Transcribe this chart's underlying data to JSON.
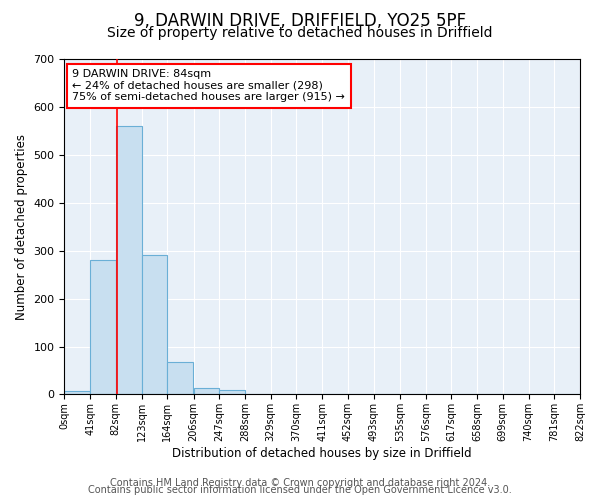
{
  "title1": "9, DARWIN DRIVE, DRIFFIELD, YO25 5PF",
  "title2": "Size of property relative to detached houses in Driffield",
  "xlabel": "Distribution of detached houses by size in Driffield",
  "ylabel": "Number of detached properties",
  "bin_edges": [
    0,
    41,
    82,
    123,
    164,
    206,
    247,
    288,
    329,
    370,
    411,
    452,
    493,
    535,
    576,
    617,
    658,
    699,
    740,
    781,
    822
  ],
  "bin_labels": [
    "0sqm",
    "41sqm",
    "82sqm",
    "123sqm",
    "164sqm",
    "206sqm",
    "247sqm",
    "288sqm",
    "329sqm",
    "370sqm",
    "411sqm",
    "452sqm",
    "493sqm",
    "535sqm",
    "576sqm",
    "617sqm",
    "658sqm",
    "699sqm",
    "740sqm",
    "781sqm",
    "822sqm"
  ],
  "bar_heights": [
    8,
    280,
    560,
    290,
    68,
    14,
    9,
    0,
    0,
    0,
    0,
    0,
    0,
    0,
    0,
    0,
    0,
    0,
    0,
    0
  ],
  "bar_color": "#c8dff0",
  "bar_edge_color": "#6aafd6",
  "ylim": [
    0,
    700
  ],
  "yticks": [
    0,
    100,
    200,
    300,
    400,
    500,
    600,
    700
  ],
  "property_line_x": 84,
  "annotation_line1": "9 DARWIN DRIVE: 84sqm",
  "annotation_line2": "← 24% of detached houses are smaller (298)",
  "annotation_line3": "75% of semi-detached houses are larger (915) →",
  "footer1": "Contains HM Land Registry data © Crown copyright and database right 2024.",
  "footer2": "Contains public sector information licensed under the Open Government Licence v3.0.",
  "background_color": "#ffffff",
  "plot_background": "#e8f0f8",
  "grid_color": "#ffffff",
  "title1_fontsize": 12,
  "title2_fontsize": 10,
  "footer_fontsize": 7
}
